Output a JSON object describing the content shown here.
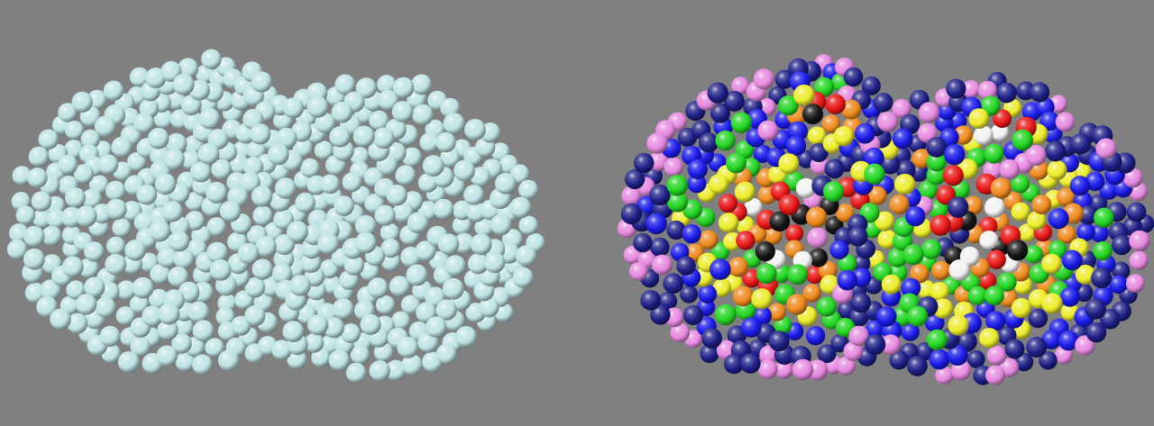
{
  "background": "#808080",
  "panels": [
    {
      "name": "uniform-panel",
      "colors": {
        "sphere": "#bfe3e4"
      }
    },
    {
      "name": "colored-panel",
      "colors": {
        "navy": "#1d1f86",
        "blue": "#1a1ae8",
        "green": "#22d522",
        "yellow": "#ecec2a",
        "orange": "#ee8a1e",
        "red": "#e81616",
        "white": "#f2f2f2",
        "black": "#141414",
        "violet": "#e68ae0"
      }
    }
  ]
}
